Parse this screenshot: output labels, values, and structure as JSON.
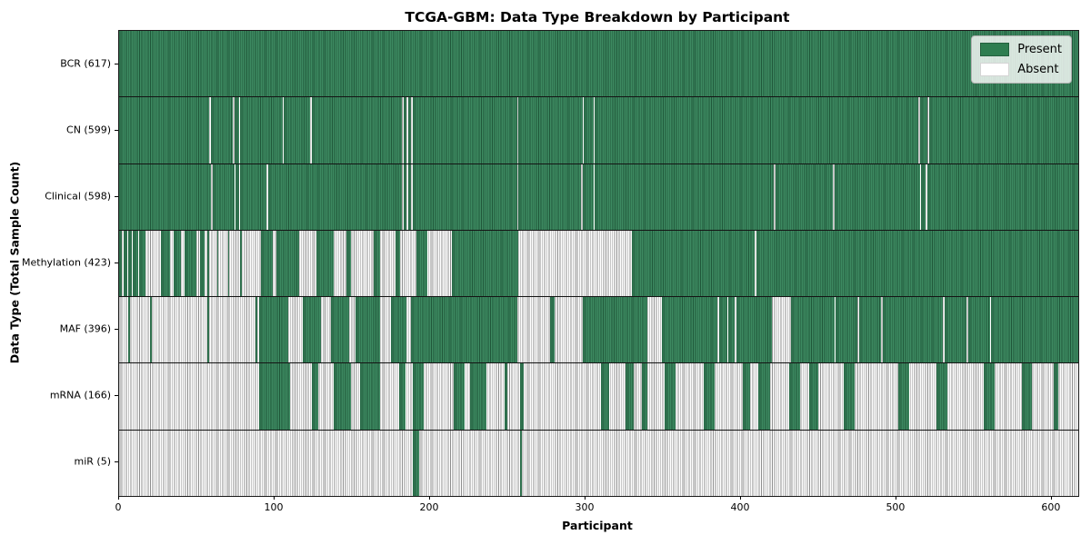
{
  "title": "TCGA-GBM: Data Type Breakdown by Participant",
  "xlabel": "Participant",
  "ylabel": "Data Type (Total Sample Count)",
  "legend": {
    "present_label": "Present",
    "absent_label": "Absent",
    "position": "upper right"
  },
  "colors": {
    "present": "#2e7d50",
    "present_edge": "#1e5737",
    "absent": "#ffffff",
    "absent_edge": "#8d8d8d",
    "separator": "#141414"
  },
  "chart_data": {
    "type": "heatmap",
    "title": "TCGA-GBM: Data Type Breakdown by Participant",
    "xlabel": "Participant",
    "ylabel": "Data Type (Total Sample Count)",
    "x_range": [
      0,
      617
    ],
    "x_ticks": [
      0,
      100,
      200,
      300,
      400,
      500,
      600
    ],
    "grid": false,
    "legend_entries": [
      "Present",
      "Absent"
    ],
    "legend_position": "upper right",
    "rows": [
      {
        "label": "BCR (617)",
        "data_type": "BCR",
        "total": 617,
        "present_intervals": [
          [
            0,
            617
          ]
        ]
      },
      {
        "label": "CN (599)",
        "data_type": "CN",
        "total": 599,
        "present_intervals": [
          [
            0,
            58
          ],
          [
            59,
            73
          ],
          [
            74,
            77
          ],
          [
            78,
            105
          ],
          [
            106,
            123
          ],
          [
            124,
            182
          ],
          [
            183,
            185
          ],
          [
            186,
            188
          ],
          [
            189,
            256
          ],
          [
            257,
            298
          ],
          [
            299,
            305
          ],
          [
            306,
            514
          ],
          [
            515,
            520
          ],
          [
            521,
            617
          ]
        ]
      },
      {
        "label": "Clinical (598)",
        "data_type": "Clinical",
        "total": 598,
        "present_intervals": [
          [
            0,
            59
          ],
          [
            60,
            74
          ],
          [
            75,
            77
          ],
          [
            78,
            95
          ],
          [
            96,
            182
          ],
          [
            183,
            185
          ],
          [
            186,
            188
          ],
          [
            189,
            256
          ],
          [
            257,
            297
          ],
          [
            298,
            305
          ],
          [
            306,
            421
          ],
          [
            422,
            459
          ],
          [
            460,
            515
          ],
          [
            516,
            519
          ],
          [
            520,
            617
          ]
        ]
      },
      {
        "label": "Methylation (423)",
        "data_type": "Methylation",
        "total": 423,
        "present_intervals": [
          [
            0,
            2
          ],
          [
            3,
            5
          ],
          [
            6,
            8
          ],
          [
            9,
            12
          ],
          [
            13,
            17
          ],
          [
            27,
            33
          ],
          [
            35,
            40
          ],
          [
            42,
            50
          ],
          [
            52,
            55
          ],
          [
            57,
            58
          ],
          [
            63,
            64
          ],
          [
            70,
            71
          ],
          [
            78,
            79
          ],
          [
            91,
            99
          ],
          [
            101,
            116
          ],
          [
            127,
            138
          ],
          [
            146,
            149
          ],
          [
            164,
            168
          ],
          [
            178,
            181
          ],
          [
            191,
            198
          ],
          [
            214,
            257
          ],
          [
            330,
            409
          ],
          [
            410,
            617
          ]
        ]
      },
      {
        "label": "MAF (396)",
        "data_type": "MAF",
        "total": 396,
        "present_intervals": [
          [
            6,
            7
          ],
          [
            20,
            21
          ],
          [
            57,
            58
          ],
          [
            88,
            89
          ],
          [
            90,
            109
          ],
          [
            118,
            130
          ],
          [
            136,
            148
          ],
          [
            152,
            168
          ],
          [
            175,
            185
          ],
          [
            188,
            256
          ],
          [
            277,
            280
          ],
          [
            298,
            340
          ],
          [
            349,
            385
          ],
          [
            386,
            391
          ],
          [
            392,
            396
          ],
          [
            397,
            420
          ],
          [
            432,
            460
          ],
          [
            461,
            475
          ],
          [
            476,
            490
          ],
          [
            491,
            530
          ],
          [
            531,
            545
          ],
          [
            546,
            560
          ],
          [
            561,
            617
          ]
        ]
      },
      {
        "label": "mRNA (166)",
        "data_type": "mRNA",
        "total": 166,
        "present_intervals": [
          [
            90,
            110
          ],
          [
            124,
            128
          ],
          [
            138,
            149
          ],
          [
            155,
            168
          ],
          [
            180,
            184
          ],
          [
            189,
            196
          ],
          [
            215,
            222
          ],
          [
            226,
            236
          ],
          [
            248,
            250
          ],
          [
            258,
            260
          ],
          [
            310,
            315
          ],
          [
            326,
            331
          ],
          [
            336,
            340
          ],
          [
            351,
            358
          ],
          [
            376,
            383
          ],
          [
            401,
            406
          ],
          [
            411,
            419
          ],
          [
            431,
            438
          ],
          [
            444,
            450
          ],
          [
            466,
            473
          ],
          [
            501,
            508
          ],
          [
            526,
            533
          ],
          [
            556,
            563
          ],
          [
            581,
            587
          ],
          [
            601,
            604
          ]
        ]
      },
      {
        "label": "miR (5)",
        "data_type": "miR",
        "total": 5,
        "present_intervals": [
          [
            189,
            193
          ],
          [
            258,
            259
          ]
        ]
      }
    ]
  }
}
